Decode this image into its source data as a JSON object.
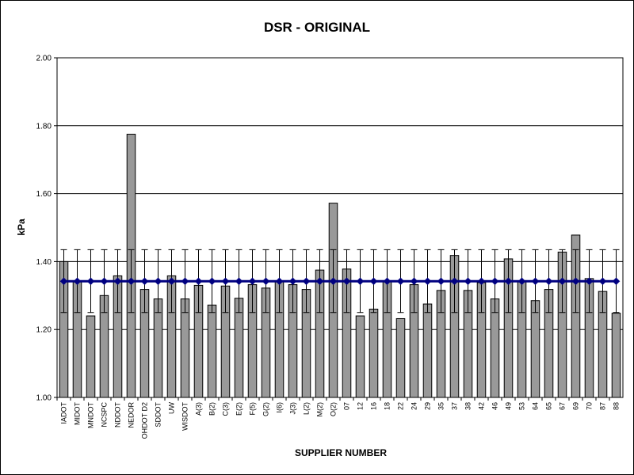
{
  "chart_data": {
    "type": "bar",
    "title": "DSR - ORIGINAL",
    "xlabel": "SUPPLIER NUMBER",
    "ylabel": "kPa",
    "ylim": [
      1.0,
      2.0
    ],
    "yticks": [
      "1.00",
      "1.20",
      "1.40",
      "1.60",
      "1.80",
      "2.00"
    ],
    "grid": true,
    "categories": [
      "IADOT",
      "MIDOT",
      "MNDOT",
      "NCSPC",
      "NDDOT",
      "NEDOR",
      "OHDOT D2",
      "SDDOT",
      "UW",
      "WISDOT",
      "A(3)",
      "B(2)",
      "C(3)",
      "E(2)",
      "F(5)",
      "G(2)",
      "I(6)",
      "J(3)",
      "L(2)",
      "M(2)",
      "O(2)",
      "07",
      "12",
      "16",
      "18",
      "22",
      "24",
      "29",
      "35",
      "37",
      "38",
      "42",
      "46",
      "49",
      "53",
      "64",
      "65",
      "67",
      "69",
      "70",
      "87",
      "88"
    ],
    "series": [
      {
        "type": "bar",
        "values": [
          1.4,
          1.34,
          1.24,
          1.3,
          1.358,
          1.775,
          1.318,
          1.29,
          1.358,
          1.29,
          1.33,
          1.272,
          1.328,
          1.292,
          1.332,
          1.322,
          1.342,
          1.332,
          1.318,
          1.375,
          1.572,
          1.378,
          1.24,
          1.26,
          1.343,
          1.232,
          1.332,
          1.275,
          1.315,
          1.418,
          1.315,
          1.338,
          1.29,
          1.408,
          1.34,
          1.285,
          1.318,
          1.428,
          1.478,
          1.35,
          1.312,
          1.248
        ],
        "color": "#999999"
      },
      {
        "type": "line",
        "value": 1.342,
        "error_high": 1.435,
        "error_low": 1.25,
        "color": "#000080"
      }
    ]
  }
}
